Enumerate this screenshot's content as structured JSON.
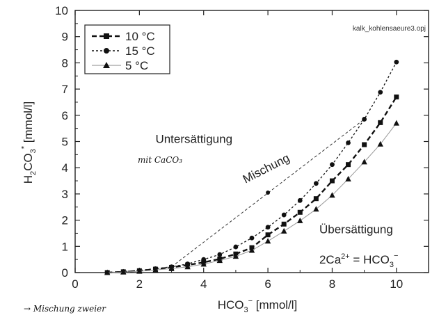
{
  "chart_data": {
    "type": "line",
    "file_label": "kalk_kohlensaeure3.opj",
    "xlabel": "HCO",
    "xlabel_sub": "3",
    "xlabel_sup": "−",
    "xlabel_unit": " [mmol/l]",
    "ylabel": "H",
    "ylabel_sub1": "2",
    "ylabel_mid": "CO",
    "ylabel_sub2": "3",
    "ylabel_sup": "*",
    "ylabel_unit": " [mmol/l]",
    "xlim": [
      0,
      11
    ],
    "ylim": [
      0,
      10
    ],
    "xticks": [
      0,
      2,
      4,
      6,
      8,
      10
    ],
    "yticks": [
      0,
      1,
      2,
      3,
      4,
      5,
      6,
      7,
      8,
      9,
      10
    ],
    "legend_position": "top-left",
    "grid": false,
    "series": [
      {
        "name": "10 °C",
        "marker": "square",
        "line": "dashed-bold",
        "color": "#111111",
        "x": [
          1,
          1.5,
          2,
          2.5,
          3,
          3.5,
          4,
          4.5,
          5,
          5.5,
          6,
          6.5,
          7,
          7.5,
          8,
          8.5,
          9,
          9.5,
          10
        ],
        "y": [
          0.0,
          0.03,
          0.07,
          0.13,
          0.2,
          0.29,
          0.39,
          0.52,
          0.71,
          0.95,
          1.44,
          1.85,
          2.3,
          2.82,
          3.5,
          4.12,
          4.88,
          5.72,
          6.7
        ]
      },
      {
        "name": "15 °C",
        "marker": "circle",
        "line": "dotted",
        "color": "#111111",
        "x": [
          1,
          1.5,
          2,
          2.5,
          3,
          3.5,
          4,
          4.5,
          5,
          5.5,
          6,
          6.5,
          7,
          7.5,
          8,
          8.5,
          9,
          9.5,
          10
        ],
        "y": [
          0.0,
          0.04,
          0.08,
          0.15,
          0.22,
          0.33,
          0.5,
          0.69,
          0.98,
          1.32,
          1.73,
          2.2,
          2.75,
          3.4,
          4.12,
          4.95,
          5.85,
          6.88,
          8.03
        ]
      },
      {
        "name": "5 °C",
        "marker": "triangle",
        "line": "solid-thin",
        "color": "#666666",
        "x": [
          1,
          1.5,
          2,
          2.5,
          3,
          3.5,
          4,
          4.5,
          5,
          5.5,
          6,
          6.5,
          7,
          7.5,
          8,
          8.5,
          9,
          9.5,
          10
        ],
        "y": [
          0.0,
          0.02,
          0.05,
          0.1,
          0.15,
          0.22,
          0.32,
          0.46,
          0.62,
          0.85,
          1.2,
          1.58,
          1.98,
          2.42,
          2.95,
          3.57,
          4.22,
          4.9,
          5.7
        ]
      }
    ],
    "mixing_line": {
      "x": [
        3,
        9
      ],
      "y": [
        0.22,
        5.85
      ],
      "label": "Mischung",
      "label_x": 5.3,
      "label_y": 3.4,
      "label_angle_deg": -27,
      "dot": [
        6,
        3.05
      ]
    },
    "annotations": [
      {
        "text": "Untersättigung",
        "x": 2.5,
        "y": 4.95
      },
      {
        "text": "Übersättigung",
        "x": 7.6,
        "y": 1.5
      },
      {
        "text": "2Ca",
        "x": 7.6,
        "y": 0.35,
        "sup": "2+",
        "rest": " = HCO",
        "sub": "3",
        "sup2": "−"
      }
    ]
  },
  "handwriting": {
    "note1": "mit CaCO₃",
    "note2": "→ Mischung zweier"
  }
}
